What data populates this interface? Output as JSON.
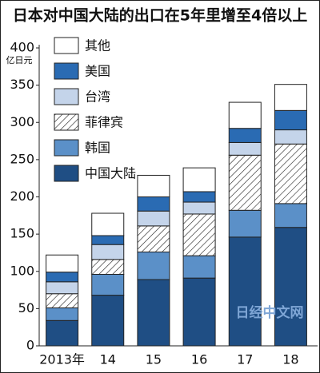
{
  "chart_data": {
    "type": "stacked_bar",
    "title": "日本对中国大陆的出口在5年里增至4倍以上",
    "y_label": "亿日元",
    "watermark": "日经中文网",
    "categories": [
      "2013年",
      "14",
      "15",
      "16",
      "17",
      "18"
    ],
    "series": [
      {
        "name": "中国大陆",
        "color": "#1f4e84",
        "values": [
          34,
          68,
          89,
          91,
          146,
          159
        ]
      },
      {
        "name": "韩国",
        "color": "#5b90c8",
        "values": [
          17,
          28,
          37,
          30,
          36,
          32
        ]
      },
      {
        "name": "菲律宾",
        "color": "#ffffff",
        "hatch": true,
        "values": [
          19,
          20,
          35,
          56,
          74,
          80
        ]
      },
      {
        "name": "台湾",
        "color": "#c4d4ea",
        "values": [
          16,
          20,
          20,
          16,
          17,
          19
        ]
      },
      {
        "name": "美国",
        "color": "#2a6bb3",
        "values": [
          13,
          12,
          19,
          14,
          19,
          26
        ]
      },
      {
        "name": "其他",
        "color": "#ffffff",
        "values": [
          23,
          30,
          29,
          32,
          35,
          35
        ]
      }
    ],
    "ylim": [
      0,
      400
    ],
    "yticks": [
      0,
      50,
      100,
      150,
      200,
      250,
      300,
      350,
      400
    ]
  }
}
